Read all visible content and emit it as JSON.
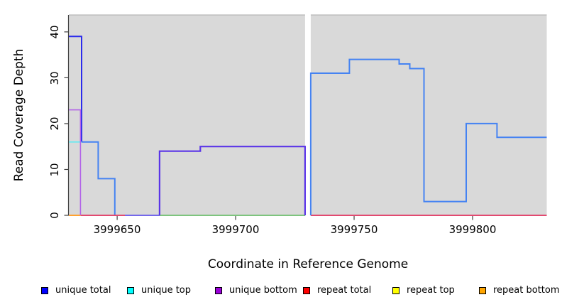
{
  "chart_data": {
    "type": "step",
    "title": "",
    "xlabel": "Coordinate in Reference Genome",
    "ylabel": "Read Coverage Depth",
    "x_ticks": [
      3999650,
      3999700,
      3999750,
      3999800
    ],
    "x_tick_labels": [
      "3999650",
      "3999700",
      "3999750",
      "3999800"
    ],
    "y_ticks": [
      0,
      10,
      20,
      30,
      40
    ],
    "y_tick_labels": [
      "0",
      "10",
      "20",
      "30",
      "40"
    ],
    "xlim": [
      3999629.6,
      3999831.3
    ],
    "ylim": [
      0,
      43.7
    ],
    "grid": false,
    "plot_bg": "#D9D9D9",
    "plot_top_border": "#ABABAB",
    "axis_color": "#404040",
    "gap_region": {
      "x0": 3999729.3,
      "x1": 3999731.7,
      "color": "#FFFFFF"
    },
    "series": [
      {
        "name": "unique total left peak",
        "color": "#2B2BEC",
        "width": 2,
        "z": 1,
        "points": [
          [
            3999629.6,
            39
          ],
          [
            3999635,
            39
          ],
          [
            3999635,
            16
          ]
        ]
      },
      {
        "name": "unique total left",
        "color": "#4583F2",
        "width": 2,
        "z": 0,
        "points": [
          [
            3999635,
            16
          ],
          [
            3999642,
            16
          ],
          [
            3999642,
            8
          ],
          [
            3999649,
            8
          ],
          [
            3999649,
            0
          ],
          [
            3999729.3,
            0
          ]
        ]
      },
      {
        "name": "unique total right",
        "color": "#4583F2",
        "width": 2,
        "z": 1,
        "points": [
          [
            3999731.7,
            0
          ],
          [
            3999731.7,
            31
          ],
          [
            3999748,
            31
          ],
          [
            3999748,
            34
          ],
          [
            3999769,
            34
          ],
          [
            3999769,
            33
          ],
          [
            3999773.5,
            33
          ],
          [
            3999773.5,
            32
          ],
          [
            3999779.5,
            32
          ],
          [
            3999779.5,
            3
          ],
          [
            3999797.3,
            3
          ],
          [
            3999797.3,
            20
          ],
          [
            3999810.3,
            20
          ],
          [
            3999810.3,
            17
          ],
          [
            3999831.3,
            17
          ]
        ]
      },
      {
        "name": "unique top",
        "color": "#63EAF2",
        "width": 1.6,
        "z": 1,
        "points": [
          [
            3999629.6,
            16
          ],
          [
            3999635,
            16
          ]
        ]
      },
      {
        "name": "unique bottom left",
        "color": "#B263E8",
        "width": 1.6,
        "z": 1,
        "points": [
          [
            3999629.6,
            23
          ],
          [
            3999634.5,
            23
          ],
          [
            3999634.5,
            0
          ]
        ]
      },
      {
        "name": "unique bottom mid",
        "color": "#5B35E8",
        "width": 2.2,
        "z": 1,
        "points": [
          [
            3999667.9,
            0
          ],
          [
            3999667.9,
            14
          ],
          [
            3999685.1,
            14
          ],
          [
            3999685.1,
            15
          ],
          [
            3999729.3,
            15
          ],
          [
            3999729.3,
            0
          ]
        ]
      }
    ],
    "zero_segments": [
      {
        "x0": 3999629.6,
        "x1": 3999634.7,
        "color": "#FFA230",
        "name": "repeat bottom zero"
      },
      {
        "x0": 3999634.7,
        "x1": 3999653.3,
        "color": "#E24A70",
        "name": "repeat total zero left"
      },
      {
        "x0": 3999653.3,
        "x1": 3999667.9,
        "color": "#7468EA",
        "name": "unique total zero overlap"
      },
      {
        "x0": 3999667.9,
        "x1": 3999729.3,
        "color": "#7EC47E",
        "name": "top strands zero overlap"
      },
      {
        "x0": 3999731.7,
        "x1": 3999831.3,
        "color": "#E24A70",
        "name": "repeat total zero right"
      }
    ]
  },
  "legend": {
    "items": [
      {
        "label": "unique total",
        "color": "#0000FF"
      },
      {
        "label": "unique top",
        "color": "#00FFFF"
      },
      {
        "label": "unique bottom",
        "color": "#9A00D9"
      },
      {
        "label": "repeat total",
        "color": "#FF0000"
      },
      {
        "label": "repeat top",
        "color": "#FFFF00"
      },
      {
        "label": "repeat bottom",
        "color": "#FFA500"
      }
    ]
  }
}
